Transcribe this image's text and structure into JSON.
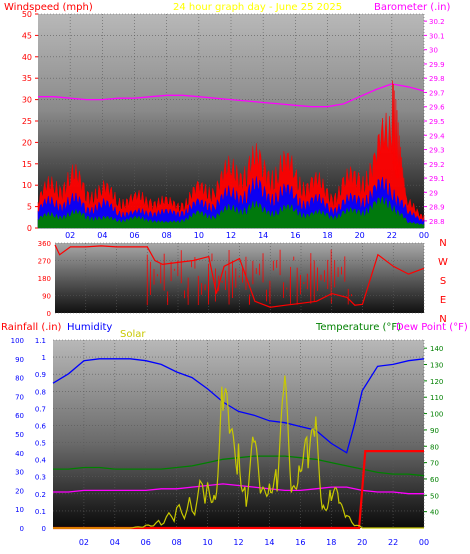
{
  "header": {
    "windspeed_label": "Windspeed (mph)",
    "title": "24 hour graph day - June 25 2025",
    "barometer_label": "Barometer (.in)"
  },
  "bottom_header": {
    "rainfall_label": "Rainfall (.in)",
    "humidity_label": "Humidity",
    "solar_label": "Solar",
    "temperature_label": "Temperature (°F)",
    "dewpoint_label": "Dew Point (°F)"
  },
  "colors": {
    "wind_label": "#ff0000",
    "title": "#ffff00",
    "barometer": "#ff00ff",
    "humidity": "#0000ff",
    "solar": "#c8c800",
    "temperature": "#008000",
    "dewpoint": "#ff00ff",
    "rain": "#ff0000",
    "wind_dir": "#ff0000",
    "wind_gust": "#ff0000",
    "wind_avg": "#0000ff",
    "wind_low": "#008000"
  },
  "chart_data": [
    {
      "type": "line",
      "id": "wind-barometer",
      "x_ticks": [
        "02",
        "04",
        "06",
        "08",
        "10",
        "12",
        "14",
        "16",
        "18",
        "20",
        "22",
        "00"
      ],
      "y_left_ticks": [
        "0",
        "5",
        "10",
        "15",
        "20",
        "25",
        "30",
        "35",
        "40",
        "45",
        "50"
      ],
      "y_left_range": [
        0,
        50
      ],
      "y_right_ticks": [
        "28.8",
        "28.9",
        "29",
        "29.1",
        "29.2",
        "29.3",
        "29.4",
        "29.5",
        "29.6",
        "29.7",
        "29.8",
        "29.9",
        "30",
        "30.1",
        "30.2"
      ],
      "y_right_range": [
        28.75,
        30.25
      ],
      "x_range_hours": [
        0,
        24
      ],
      "series": [
        {
          "name": "Barometer",
          "axis": "right",
          "x": [
            0,
            1,
            2,
            3,
            4,
            5,
            6,
            7,
            8,
            9,
            10,
            11,
            12,
            13,
            14,
            15,
            16,
            17,
            18,
            19,
            20,
            21,
            22,
            23,
            24
          ],
          "values": [
            29.67,
            29.67,
            29.66,
            29.65,
            29.65,
            29.66,
            29.66,
            29.67,
            29.68,
            29.68,
            29.67,
            29.66,
            29.65,
            29.64,
            29.63,
            29.62,
            29.61,
            29.6,
            29.6,
            29.62,
            29.67,
            29.72,
            29.76,
            29.74,
            29.71
          ]
        },
        {
          "name": "Gust",
          "axis": "left",
          "x": [
            0,
            1,
            2,
            3,
            4,
            5,
            6,
            7,
            8,
            9,
            10,
            11,
            12,
            13,
            14,
            15,
            16,
            17,
            18,
            19,
            20,
            21,
            22,
            22.5,
            23,
            24
          ],
          "values": [
            6,
            10,
            11,
            9,
            8,
            7,
            6,
            7,
            5,
            6,
            8,
            10,
            12,
            15,
            13,
            14,
            12,
            10,
            8,
            9,
            12,
            14,
            26,
            16,
            5,
            3
          ]
        },
        {
          "name": "Average",
          "axis": "left",
          "x": [
            0,
            1,
            2,
            3,
            4,
            5,
            6,
            7,
            8,
            9,
            10,
            11,
            12,
            13,
            14,
            15,
            16,
            17,
            18,
            19,
            20,
            21,
            22,
            23,
            24
          ],
          "values": [
            4,
            6,
            6,
            5,
            5,
            4,
            3,
            4,
            3,
            4,
            5,
            6,
            7,
            9,
            8,
            8,
            7,
            6,
            5,
            5,
            7,
            8,
            10,
            3,
            2
          ]
        },
        {
          "name": "Low",
          "axis": "left",
          "x": [
            0,
            1,
            2,
            3,
            4,
            5,
            6,
            7,
            8,
            9,
            10,
            11,
            12,
            13,
            14,
            15,
            16,
            17,
            18,
            19,
            20,
            21,
            22,
            23,
            24
          ],
          "values": [
            2,
            3,
            3,
            3,
            2,
            2,
            2,
            2,
            1,
            2,
            3,
            3,
            4,
            5,
            4,
            4,
            4,
            3,
            3,
            3,
            4,
            5,
            6,
            1,
            1
          ]
        }
      ]
    },
    {
      "type": "line",
      "id": "wind-direction",
      "y_left_ticks": [
        "0",
        "90",
        "180",
        "270",
        "360"
      ],
      "y_left_range": [
        0,
        360
      ],
      "y_right_ticks": [
        "N",
        "E",
        "S",
        "W",
        "N"
      ],
      "x_range_hours": [
        0,
        24
      ],
      "series": [
        {
          "name": "Direction",
          "x": [
            0,
            0.3,
            1,
            2,
            3,
            4,
            5,
            6,
            6.5,
            7,
            8,
            9,
            10,
            10.5,
            11,
            12,
            13,
            14,
            15,
            16,
            17,
            18,
            19,
            19.5,
            20,
            21,
            22,
            23,
            24
          ],
          "values": [
            350,
            300,
            340,
            340,
            345,
            340,
            340,
            340,
            270,
            250,
            260,
            270,
            290,
            100,
            240,
            280,
            60,
            30,
            40,
            50,
            60,
            100,
            80,
            40,
            45,
            300,
            240,
            200,
            230
          ]
        }
      ]
    },
    {
      "type": "line",
      "id": "rain-humidity-temp",
      "x_ticks": [
        "02",
        "04",
        "06",
        "08",
        "10",
        "12",
        "14",
        "16",
        "18",
        "20",
        "22",
        "00"
      ],
      "y_left_ticks": [
        "0",
        "10",
        "20",
        "30",
        "40",
        "50",
        "60",
        "70",
        "80",
        "90",
        "100"
      ],
      "y_left_range": [
        0,
        100
      ],
      "y_rain_ticks": [
        "0",
        "0.1",
        "0.2",
        "0.3",
        "0.4",
        "0.5",
        "0.6",
        "0.7",
        "0.8",
        "0.9",
        "1",
        "1.1"
      ],
      "y_rain_range": [
        0,
        1.1
      ],
      "y_right_ticks": [
        "40",
        "50",
        "60",
        "70",
        "80",
        "90",
        "100",
        "110",
        "120",
        "130",
        "140"
      ],
      "y_right_range": [
        30,
        145
      ],
      "x_range_hours": [
        0,
        24
      ],
      "series": [
        {
          "name": "Humidity",
          "axis": "left",
          "x": [
            0,
            1,
            2,
            3,
            4,
            5,
            6,
            7,
            8,
            9,
            10,
            11,
            12,
            13,
            14,
            15,
            16,
            17,
            18,
            19,
            19.5,
            20,
            21,
            22,
            23,
            24
          ],
          "values": [
            77,
            82,
            89,
            90,
            90,
            90,
            89,
            87,
            83,
            80,
            74,
            67,
            62,
            60,
            57,
            56,
            54,
            52,
            45,
            40,
            55,
            73,
            86,
            87,
            89,
            90
          ]
        },
        {
          "name": "Temperature",
          "axis": "right",
          "x": [
            0,
            1,
            2,
            3,
            4,
            5,
            6,
            7,
            8,
            9,
            10,
            11,
            12,
            13,
            14,
            15,
            16,
            17,
            18,
            19,
            20,
            21,
            22,
            23,
            24
          ],
          "values": [
            66,
            66,
            67,
            67,
            66,
            66,
            66,
            66,
            67,
            68,
            70,
            72,
            73,
            74,
            74,
            74,
            73,
            72,
            70,
            68,
            66,
            64,
            63,
            63,
            62
          ]
        },
        {
          "name": "Dew Point",
          "axis": "right",
          "x": [
            0,
            1,
            2,
            3,
            4,
            5,
            6,
            7,
            8,
            9,
            10,
            11,
            12,
            13,
            14,
            15,
            16,
            17,
            18,
            19,
            20,
            21,
            22,
            23,
            24
          ],
          "values": [
            52,
            52,
            53,
            53,
            53,
            53,
            53,
            54,
            54,
            55,
            56,
            57,
            56,
            55,
            54,
            53,
            53,
            54,
            55,
            55,
            53,
            52,
            52,
            51,
            51
          ]
        },
        {
          "name": "Rainfall",
          "axis": "rain",
          "x": [
            0,
            19.8,
            20.2,
            20.4,
            24
          ],
          "values": [
            0,
            0,
            0.45,
            0.45,
            0.45
          ]
        },
        {
          "name": "Solar",
          "axis": "left",
          "x": [
            0,
            5,
            6,
            7,
            8,
            9,
            10,
            10.5,
            11,
            11.5,
            12,
            12.5,
            13,
            13.5,
            14,
            14.5,
            15,
            15.5,
            16,
            16.5,
            17,
            17.5,
            18,
            18.5,
            19,
            20,
            24
          ],
          "values": [
            0,
            0,
            1,
            3,
            8,
            12,
            22,
            30,
            60,
            35,
            55,
            20,
            35,
            15,
            40,
            25,
            55,
            20,
            60,
            30,
            40,
            15,
            25,
            10,
            5,
            0,
            0
          ]
        }
      ]
    }
  ]
}
